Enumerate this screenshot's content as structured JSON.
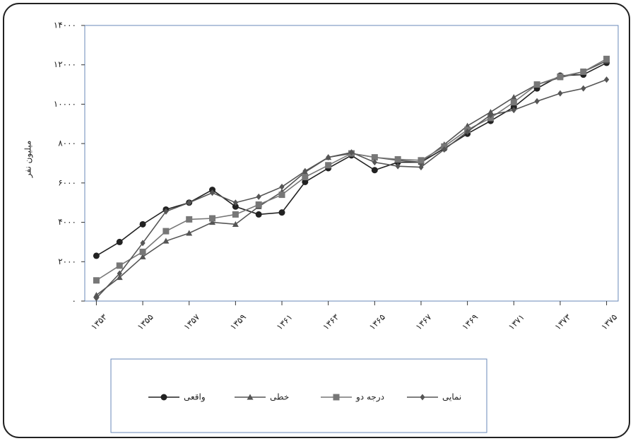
{
  "chart_data": {
    "type": "line",
    "y_label": "میلیون نفر",
    "x": [
      1353,
      1354,
      1355,
      1356,
      1357,
      1358,
      1359,
      1360,
      1361,
      1362,
      1363,
      1364,
      1365,
      1366,
      1367,
      1368,
      1369,
      1370,
      1371,
      1372,
      1373,
      1374,
      1375
    ],
    "xlim": [
      1352.5,
      1375.5
    ],
    "xticks": [
      {
        "value": 1353,
        "label": "۱۳۵۳"
      },
      {
        "value": 1355,
        "label": "۱۳۵۵"
      },
      {
        "value": 1357,
        "label": "۱۳۵۷"
      },
      {
        "value": 1359,
        "label": "۱۳۵۹"
      },
      {
        "value": 1361,
        "label": "۱۳۶۱"
      },
      {
        "value": 1363,
        "label": "۱۳۶۳"
      },
      {
        "value": 1365,
        "label": "۱۳۶۵"
      },
      {
        "value": 1367,
        "label": "۱۳۶۷"
      },
      {
        "value": 1369,
        "label": "۱۳۶۹"
      },
      {
        "value": 1371,
        "label": "۱۳۷۱"
      },
      {
        "value": 1373,
        "label": "۱۳۷۳"
      },
      {
        "value": 1375,
        "label": "۱۳۷۵"
      }
    ],
    "ylim": [
      0,
      14000
    ],
    "yticks": [
      {
        "value": 0,
        "label": "۰"
      },
      {
        "value": 2000,
        "label": "۲۰۰۰"
      },
      {
        "value": 4000,
        "label": "۴۰۰۰"
      },
      {
        "value": 6000,
        "label": "۶۰۰۰"
      },
      {
        "value": 8000,
        "label": "۸۰۰۰"
      },
      {
        "value": 10000,
        "label": "۱۰۰۰۰"
      },
      {
        "value": 12000,
        "label": "۱۲۰۰۰"
      },
      {
        "value": 14000,
        "label": "۱۴۰۰۰"
      }
    ],
    "series": [
      {
        "name": "واقعی",
        "color": "#222222",
        "marker": "circle",
        "values": [
          2300,
          3000,
          3900,
          4650,
          5000,
          5650,
          4800,
          4400,
          4500,
          6050,
          6750,
          7400,
          6650,
          7050,
          7050,
          7750,
          8500,
          9150,
          9850,
          10800,
          11450,
          11500,
          12100
        ]
      },
      {
        "name": "خطی",
        "color": "#555555",
        "marker": "triangle",
        "values": [
          300,
          1200,
          2250,
          3050,
          3450,
          4000,
          3900,
          4800,
          5550,
          6550,
          7300,
          7500,
          7300,
          7150,
          7050,
          7950,
          8900,
          9600,
          10350,
          11000,
          11350,
          11650,
          12200
        ]
      },
      {
        "name": "درجه دو",
        "color": "#777777",
        "marker": "square",
        "values": [
          1050,
          1800,
          2500,
          3550,
          4150,
          4200,
          4400,
          4900,
          5400,
          6300,
          6900,
          7500,
          7300,
          7200,
          7150,
          7850,
          8700,
          9300,
          10100,
          11000,
          11400,
          11650,
          12300
        ]
      },
      {
        "name": "نمایی",
        "color": "#555555",
        "marker": "diamond",
        "values": [
          150,
          1400,
          2950,
          4550,
          5000,
          5500,
          5000,
          5300,
          5800,
          6600,
          7300,
          7550,
          7050,
          6850,
          6800,
          7700,
          8600,
          9450,
          9700,
          10150,
          10550,
          10800,
          11250
        ]
      }
    ]
  }
}
